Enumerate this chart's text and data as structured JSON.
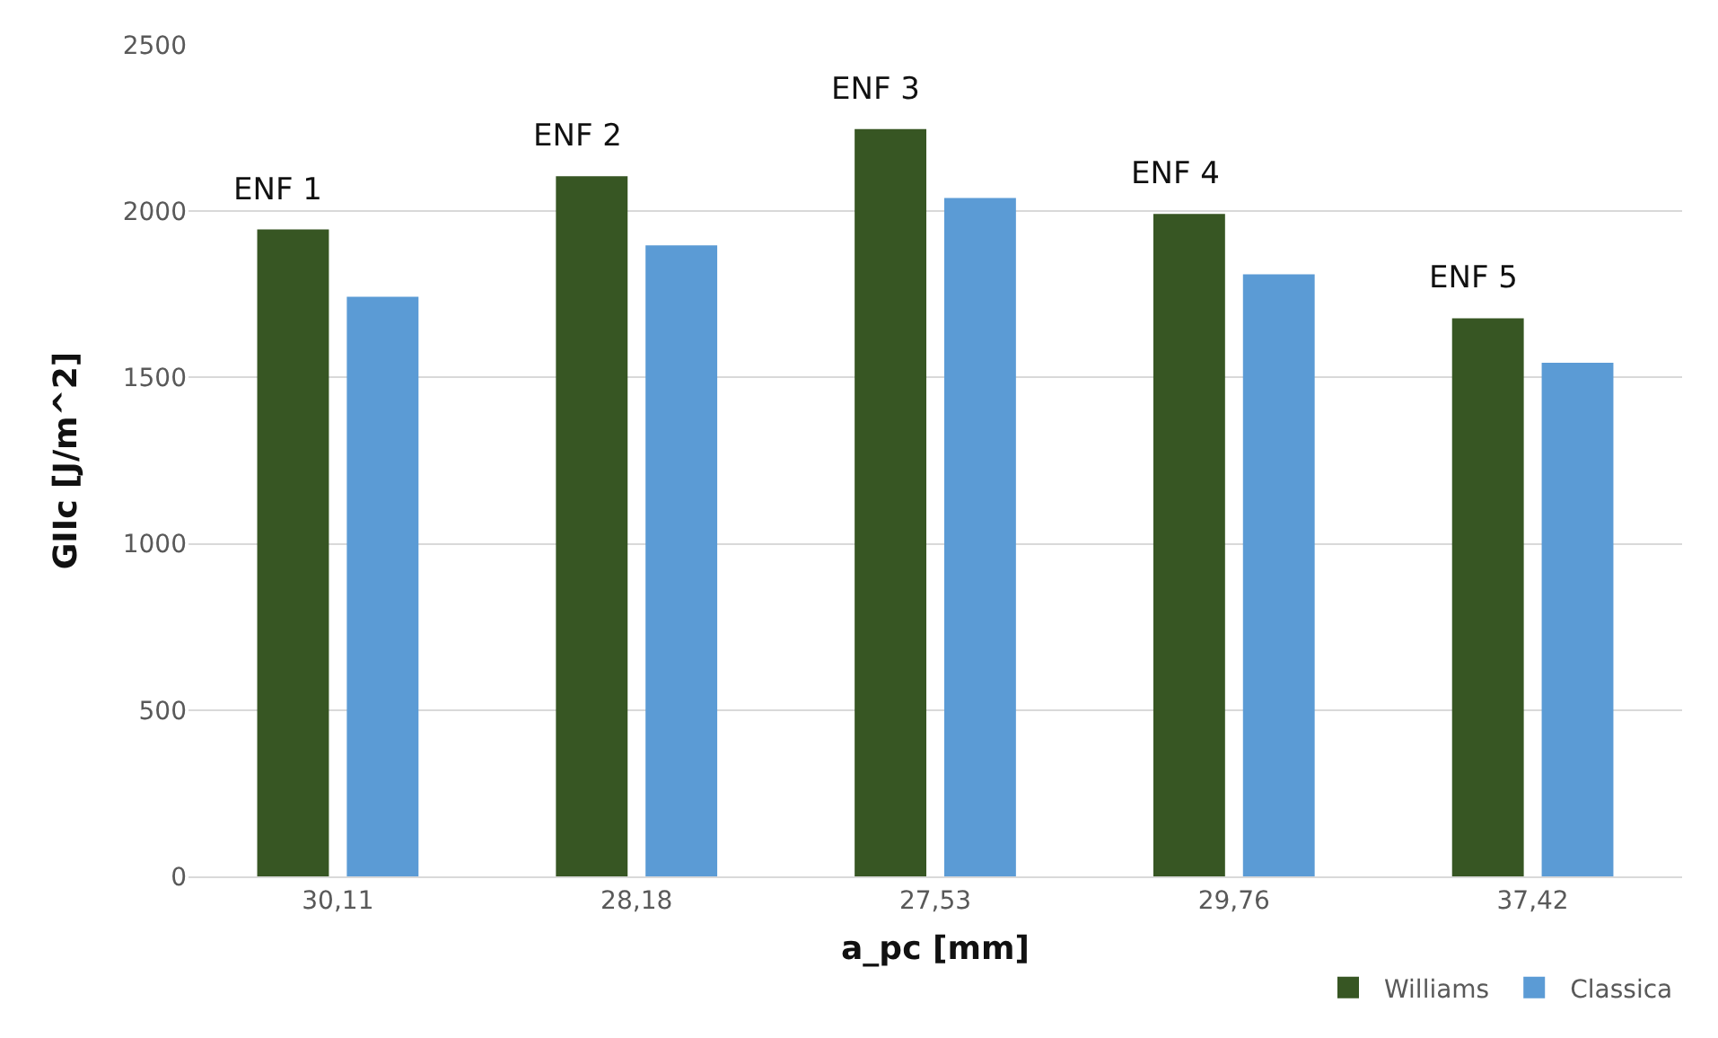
{
  "chart_data": {
    "type": "bar",
    "xlabel": "a_pc [mm]",
    "ylabel": "GIIc [J/m^2]",
    "categories": [
      "30,11",
      "28,18",
      "27,53",
      "29,76",
      "37,42"
    ],
    "series": [
      {
        "name": "Williams",
        "color": "#375623",
        "values": [
          1945,
          2105,
          2247,
          1992,
          1678
        ]
      },
      {
        "name": "Classica",
        "color": "#5b9bd5",
        "values": [
          1743,
          1897,
          2040,
          1810,
          1544
        ]
      }
    ],
    "annotations": [
      {
        "text": "ENF 1",
        "x": "30,11",
        "y": 1945
      },
      {
        "text": "ENF 2",
        "x": "28,18",
        "y": 2105
      },
      {
        "text": "ENF 3",
        "x": "27,53",
        "y": 2247
      },
      {
        "text": "ENF 4",
        "x": "29,76",
        "y": 1992
      },
      {
        "text": "ENF 5",
        "x": "37,42",
        "y": 1678
      }
    ],
    "ylim": [
      0,
      2500
    ],
    "yticks": [
      0,
      500,
      1000,
      1500,
      2000,
      2500
    ],
    "grid": "y",
    "legend": "bottom right"
  }
}
